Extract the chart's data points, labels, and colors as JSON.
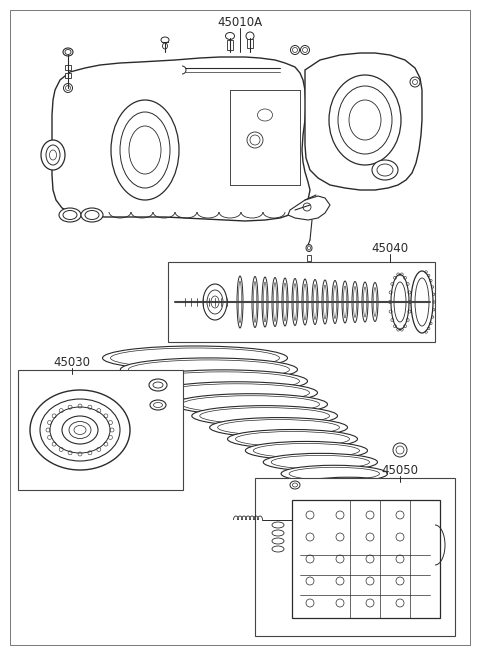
{
  "title": "45010A",
  "label_45040": "45040",
  "label_45030": "45030",
  "label_45050": "45050",
  "bg_color": "#ffffff",
  "line_color": "#2a2a2a",
  "fig_width": 4.8,
  "fig_height": 6.55,
  "dpi": 100
}
